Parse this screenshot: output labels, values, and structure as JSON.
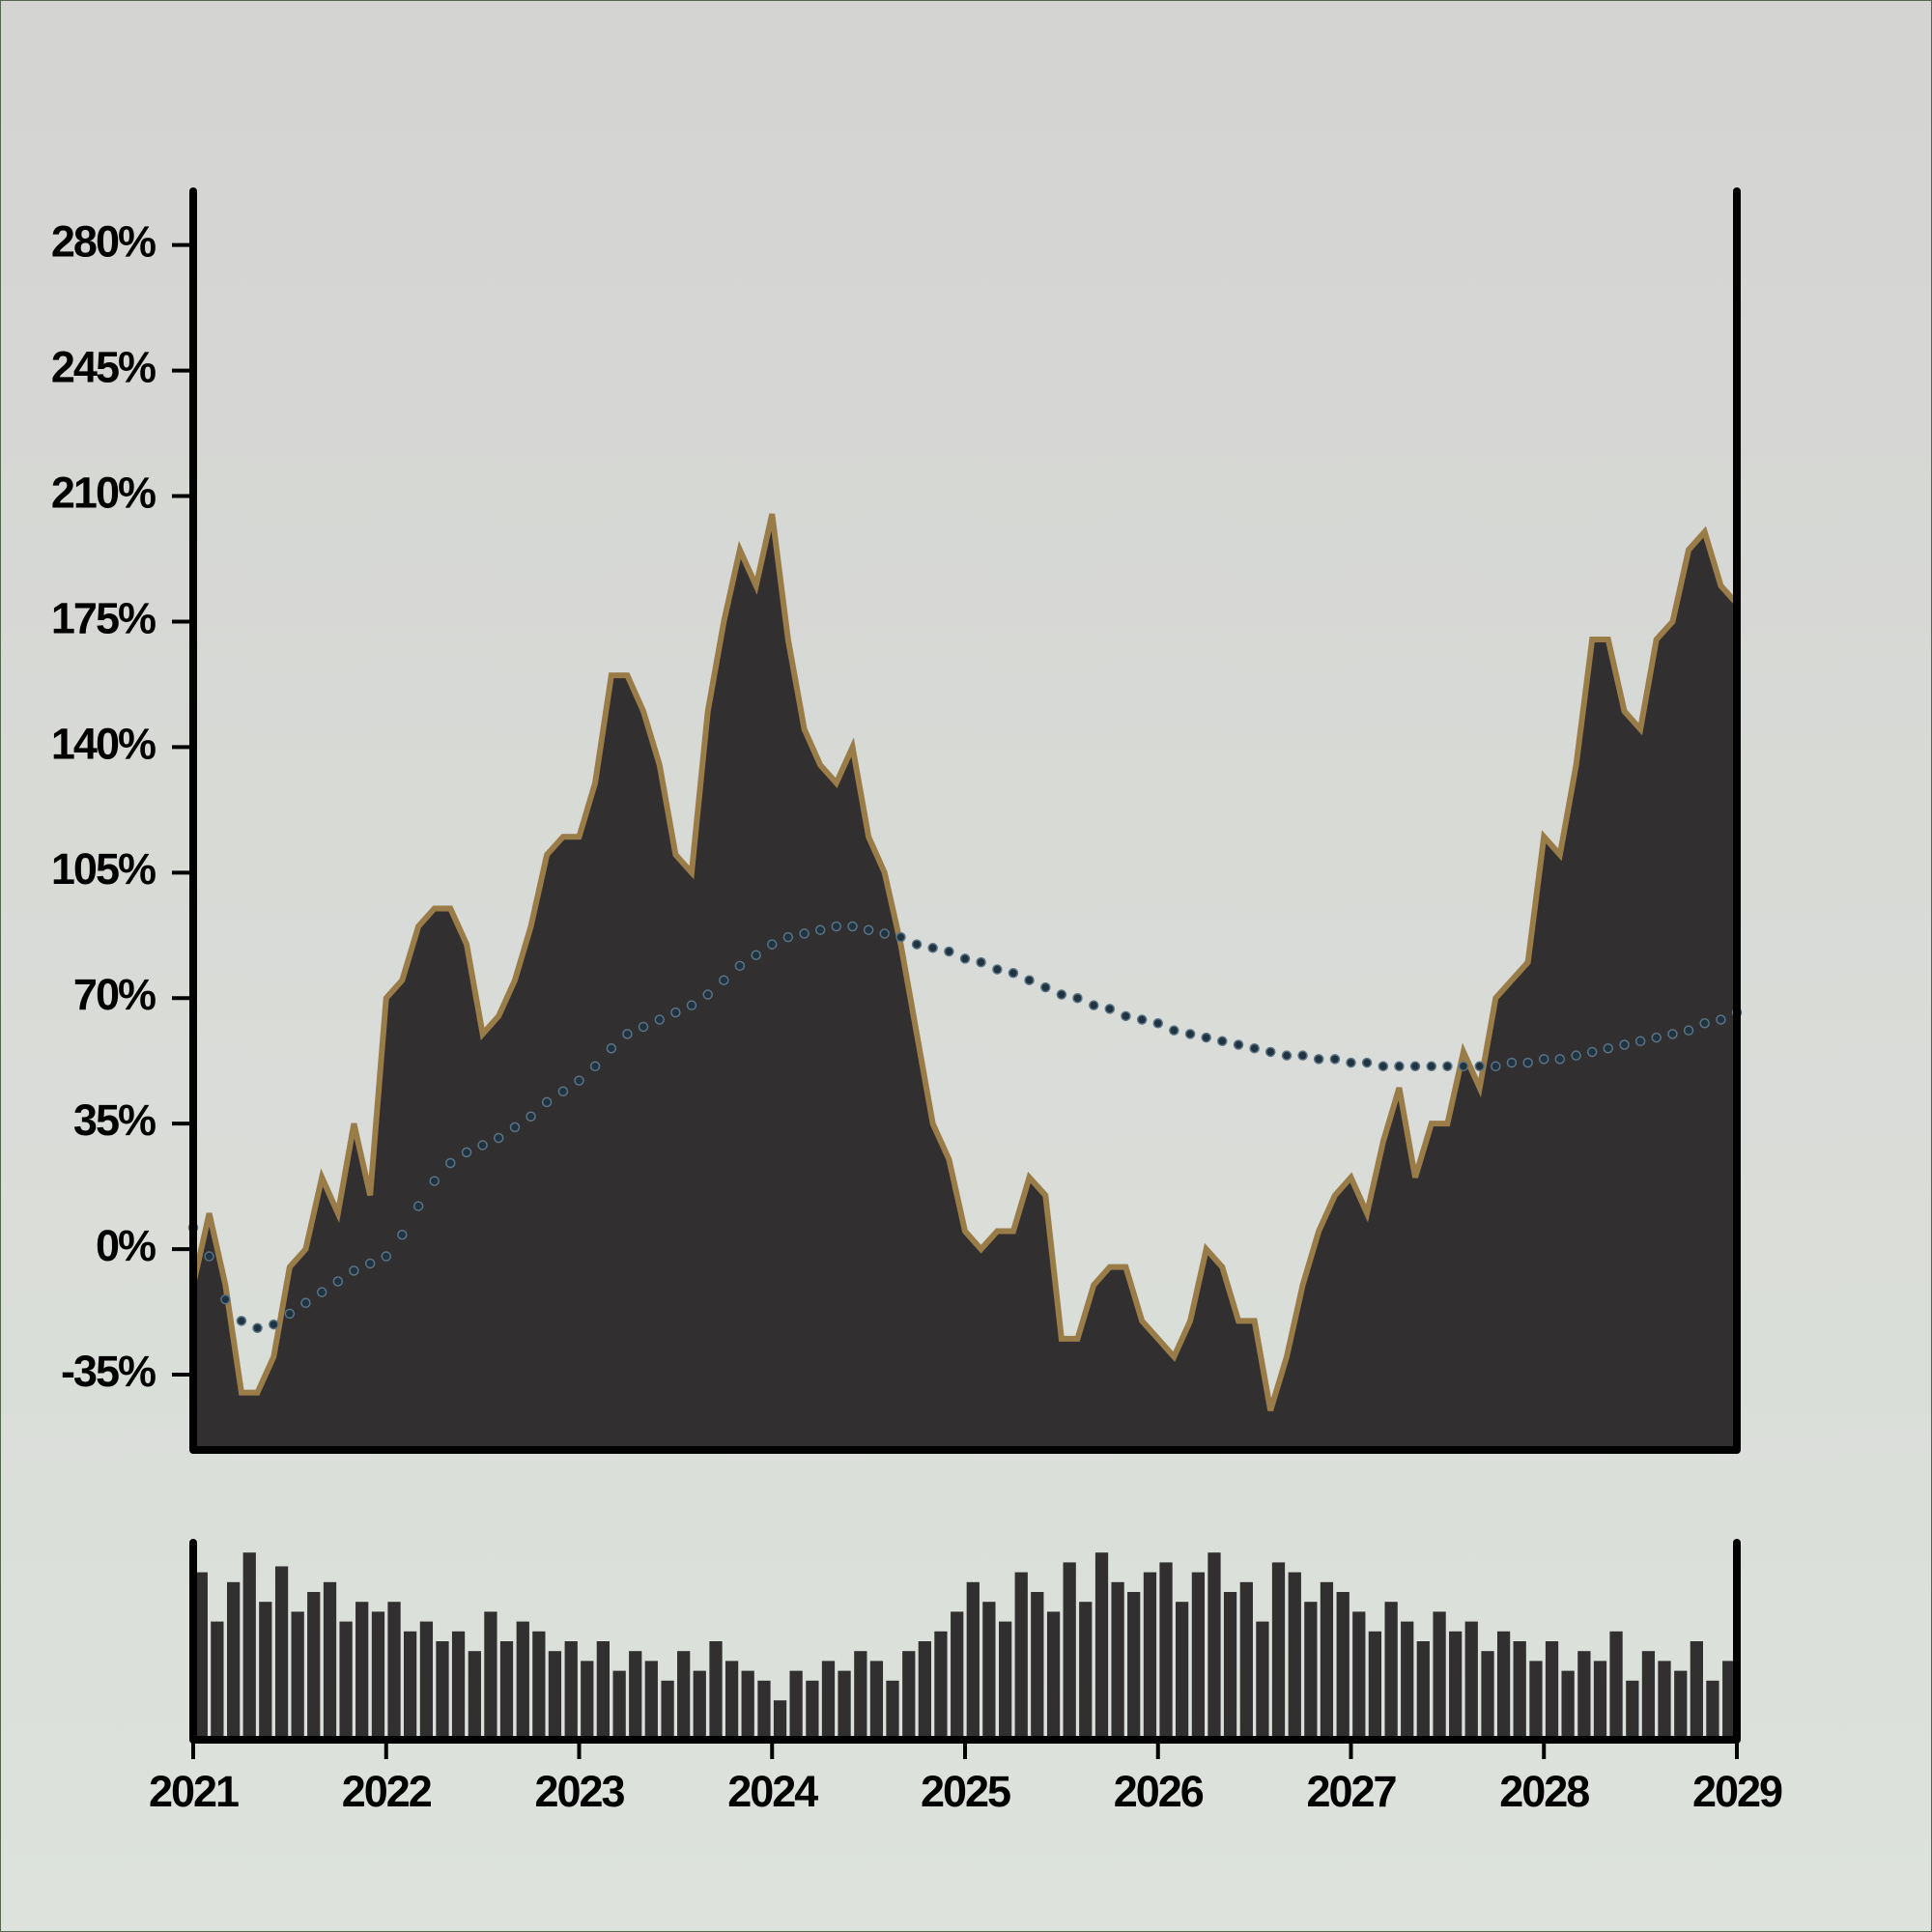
{
  "chart_data": [
    {
      "type": "area",
      "x": [
        2021,
        2021.083,
        2021.167,
        2021.25,
        2021.333,
        2021.417,
        2021.5,
        2021.583,
        2021.667,
        2021.75,
        2021.833,
        2021.917,
        2022,
        2022.083,
        2022.167,
        2022.25,
        2022.333,
        2022.417,
        2022.5,
        2022.583,
        2022.667,
        2022.75,
        2022.833,
        2022.917,
        2023,
        2023.083,
        2023.167,
        2023.25,
        2023.333,
        2023.417,
        2023.5,
        2023.583,
        2023.667,
        2023.75,
        2023.833,
        2023.917,
        2024,
        2024.083,
        2024.167,
        2024.25,
        2024.333,
        2024.417,
        2024.5,
        2024.583,
        2024.667,
        2024.75,
        2024.833,
        2024.917,
        2025,
        2025.083,
        2025.167,
        2025.25,
        2025.333,
        2025.417,
        2025.5,
        2025.583,
        2025.667,
        2025.75,
        2025.833,
        2025.917,
        2026,
        2026.083,
        2026.167,
        2026.25,
        2026.333,
        2026.417,
        2026.5,
        2026.583,
        2026.667,
        2026.75,
        2026.833,
        2026.917,
        2027,
        2027.083,
        2027.167,
        2027.25,
        2027.333,
        2027.417,
        2027.5,
        2027.583,
        2027.667,
        2027.75,
        2027.833,
        2027.917,
        2028,
        2028.083,
        2028.167,
        2028.25,
        2028.333,
        2028.417,
        2028.5,
        2028.583,
        2028.667,
        2028.75,
        2028.833,
        2028.917,
        2029
      ],
      "series": [
        {
          "style": "area",
          "color": "#9a7c48",
          "fill": "#312f30",
          "values": [
            -10,
            10,
            -10,
            -40,
            -40,
            -30,
            -5,
            0,
            20,
            10,
            35,
            15,
            70,
            75,
            90,
            95,
            95,
            85,
            60,
            65,
            75,
            90,
            110,
            115,
            115,
            130,
            160,
            160,
            150,
            135,
            110,
            105,
            150,
            175,
            195,
            185,
            205,
            170,
            145,
            135,
            130,
            140,
            115,
            105,
            85,
            60,
            35,
            25,
            5,
            0,
            5,
            5,
            20,
            15,
            -25,
            -25,
            -10,
            -5,
            -5,
            -20,
            -25,
            -30,
            -20,
            0,
            -5,
            -20,
            -20,
            -45,
            -30,
            -10,
            5,
            15,
            20,
            10,
            30,
            45,
            20,
            35,
            35,
            55,
            45,
            70,
            75,
            80,
            115,
            110,
            135,
            170,
            170,
            150,
            145,
            170,
            175,
            195,
            200,
            185,
            180
          ]
        },
        {
          "style": "dots",
          "color": "#1f3340",
          "values": [
            6,
            -2,
            -14,
            -20,
            -22,
            -21,
            -18,
            -15,
            -12,
            -9,
            -6,
            -4,
            -2,
            4,
            12,
            19,
            24,
            27,
            29,
            31,
            34,
            37,
            41,
            44,
            47,
            51,
            56,
            60,
            62,
            64,
            66,
            68,
            71,
            75,
            79,
            82,
            85,
            87,
            88,
            89,
            90,
            90,
            89,
            88,
            87,
            85,
            84,
            83,
            81,
            80,
            78,
            77,
            75,
            73,
            71,
            70,
            68,
            67,
            65,
            64,
            63,
            61,
            60,
            59,
            58,
            57,
            56,
            55,
            54,
            54,
            53,
            53,
            52,
            52,
            51,
            51,
            51,
            51,
            51,
            51,
            51,
            51,
            52,
            52,
            53,
            53,
            54,
            55,
            56,
            57,
            58,
            59,
            60,
            61,
            63,
            64,
            66
          ]
        }
      ],
      "xlim": [
        2021,
        2029
      ],
      "xticks": [
        2021,
        2022,
        2023,
        2024,
        2025,
        2026,
        2027,
        2028,
        2029
      ],
      "ylim": [
        -56,
        295
      ],
      "yticks": [
        {
          "value": -35,
          "label": "-35%"
        },
        {
          "value": 0,
          "label": "0%"
        },
        {
          "value": 35,
          "label": "35%"
        },
        {
          "value": 70,
          "label": "70%"
        },
        {
          "value": 105,
          "label": "105%"
        },
        {
          "value": 140,
          "label": "140%"
        },
        {
          "value": 175,
          "label": "175%"
        },
        {
          "value": 210,
          "label": "210%"
        },
        {
          "value": 245,
          "label": "245%"
        },
        {
          "value": 280,
          "label": "280%"
        }
      ]
    },
    {
      "type": "bar",
      "color": "#312f30",
      "x": [
        2021,
        2021.083,
        2021.167,
        2021.25,
        2021.333,
        2021.417,
        2021.5,
        2021.583,
        2021.667,
        2021.75,
        2021.833,
        2021.917,
        2022,
        2022.083,
        2022.167,
        2022.25,
        2022.333,
        2022.417,
        2022.5,
        2022.583,
        2022.667,
        2022.75,
        2022.833,
        2022.917,
        2023,
        2023.083,
        2023.167,
        2023.25,
        2023.333,
        2023.417,
        2023.5,
        2023.583,
        2023.667,
        2023.75,
        2023.833,
        2023.917,
        2024,
        2024.083,
        2024.167,
        2024.25,
        2024.333,
        2024.417,
        2024.5,
        2024.583,
        2024.667,
        2024.75,
        2024.833,
        2024.917,
        2025,
        2025.083,
        2025.167,
        2025.25,
        2025.333,
        2025.417,
        2025.5,
        2025.583,
        2025.667,
        2025.75,
        2025.833,
        2025.917,
        2026,
        2026.083,
        2026.167,
        2026.25,
        2026.333,
        2026.417,
        2026.5,
        2026.583,
        2026.667,
        2026.75,
        2026.833,
        2026.917,
        2027,
        2027.083,
        2027.167,
        2027.25,
        2027.333,
        2027.417,
        2027.5,
        2027.583,
        2027.667,
        2027.75,
        2027.833,
        2027.917,
        2028,
        2028.083,
        2028.167,
        2028.25,
        2028.333,
        2028.417,
        2028.5,
        2028.583,
        2028.667,
        2028.75,
        2028.833,
        2028.917
      ],
      "values": [
        85,
        60,
        80,
        95,
        70,
        88,
        65,
        75,
        80,
        60,
        70,
        65,
        70,
        55,
        60,
        50,
        55,
        45,
        65,
        50,
        60,
        55,
        45,
        50,
        40,
        50,
        35,
        45,
        40,
        30,
        45,
        35,
        50,
        40,
        35,
        30,
        20,
        35,
        30,
        40,
        35,
        45,
        40,
        30,
        45,
        50,
        55,
        65,
        80,
        70,
        60,
        85,
        75,
        65,
        90,
        70,
        95,
        80,
        75,
        85,
        90,
        70,
        85,
        95,
        75,
        80,
        60,
        90,
        85,
        70,
        80,
        75,
        65,
        55,
        70,
        60,
        50,
        65,
        55,
        60,
        45,
        55,
        50,
        40,
        50,
        35,
        45,
        40,
        55,
        30,
        45,
        40,
        35,
        50,
        30,
        40
      ],
      "xlim": [
        2021,
        2029
      ],
      "ylim": [
        0,
        100
      ]
    }
  ]
}
